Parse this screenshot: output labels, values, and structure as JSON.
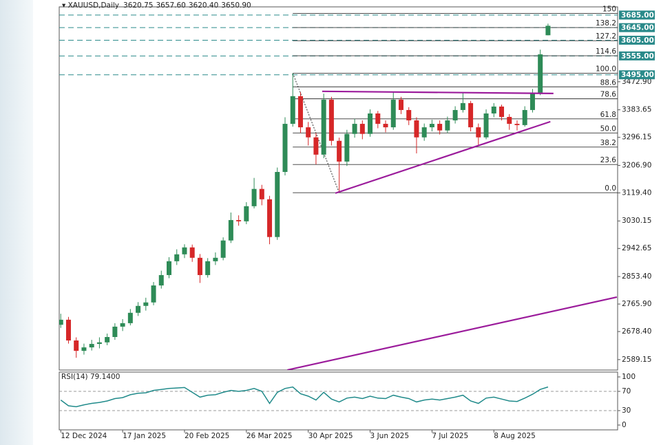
{
  "header": {
    "symbol": "XAUUSD,Daily",
    "ohlc": [
      "3620.75",
      "3657.60",
      "3620.40",
      "3650.90"
    ]
  },
  "chart_data": [
    {
      "type": "candlestick",
      "up_color": "#2e8b57",
      "down_color": "#d62728",
      "open": [
        2700,
        2716,
        2650,
        2617,
        2628,
        2639,
        2644,
        2661,
        2694,
        2705,
        2738,
        2760,
        2771,
        2825,
        2858,
        2902,
        2924,
        2946,
        2913,
        2858,
        2902,
        2913,
        2968,
        3033,
        3029,
        3077,
        3132,
        3099,
        2979,
        3186,
        3339,
        3427,
        3328,
        3296,
        3241,
        3416,
        3285,
        3219,
        3307,
        3339,
        3307,
        3372,
        3339,
        3328,
        3416,
        3383,
        3350,
        3296,
        3328,
        3339,
        3318,
        3350,
        3383,
        3405,
        3328,
        3296,
        3372,
        3394,
        3361,
        3339,
        3335,
        3383,
        3438,
        3620.75
      ],
      "high": [
        2735,
        2725,
        2660,
        2640,
        2652,
        2660,
        2672,
        2705,
        2718,
        2750,
        2772,
        2786,
        2836,
        2872,
        2915,
        2940,
        2956,
        2955,
        2925,
        2912,
        2930,
        2978,
        3057,
        3048,
        3090,
        3167,
        3145,
        3110,
        3200,
        3360,
        3500,
        3440,
        3345,
        3310,
        3435,
        3425,
        3295,
        3320,
        3355,
        3350,
        3385,
        3380,
        3350,
        3440,
        3425,
        3392,
        3360,
        3340,
        3352,
        3350,
        3362,
        3395,
        3438,
        3412,
        3340,
        3385,
        3405,
        3400,
        3370,
        3350,
        3395,
        3450,
        3575,
        3657.6
      ],
      "low": [
        2690,
        2640,
        2595,
        2605,
        2618,
        2625,
        2635,
        2652,
        2680,
        2698,
        2728,
        2745,
        2762,
        2815,
        2848,
        2890,
        2912,
        2900,
        2833,
        2850,
        2890,
        2905,
        2960,
        3015,
        3020,
        3070,
        3080,
        2956,
        2970,
        3175,
        3330,
        3310,
        3270,
        3210,
        3230,
        3270,
        3120,
        3205,
        3295,
        3290,
        3298,
        3325,
        3312,
        3320,
        3370,
        3335,
        3245,
        3285,
        3315,
        3305,
        3310,
        3340,
        3375,
        3315,
        3268,
        3290,
        3360,
        3350,
        3320,
        3318,
        3330,
        3375,
        3430,
        3620.4
      ],
      "close": [
        2716,
        2650,
        2617,
        2628,
        2639,
        2644,
        2661,
        2694,
        2705,
        2738,
        2760,
        2771,
        2825,
        2858,
        2902,
        2924,
        2946,
        2913,
        2858,
        2902,
        2913,
        2968,
        3033,
        3029,
        3077,
        3132,
        3099,
        2979,
        3186,
        3339,
        3427,
        3328,
        3296,
        3241,
        3416,
        3285,
        3219,
        3307,
        3339,
        3307,
        3372,
        3339,
        3328,
        3416,
        3383,
        3350,
        3296,
        3328,
        3339,
        3318,
        3350,
        3383,
        3405,
        3328,
        3296,
        3372,
        3394,
        3361,
        3339,
        3335,
        3383,
        3438,
        3560,
        3650.9
      ],
      "xlim": [
        -0.2,
        72
      ],
      "xticks": [
        {
          "value": 0,
          "label": "12 Dec 2024"
        },
        {
          "value": 8,
          "label": "17 Jan 2025"
        },
        {
          "value": 16,
          "label": "20 Feb 2025"
        },
        {
          "value": 24,
          "label": "26 Mar 2025"
        },
        {
          "value": 32,
          "label": "30 Apr 2025"
        },
        {
          "value": 40,
          "label": "3 Jun 2025"
        },
        {
          "value": 48,
          "label": "7 Jul 2025"
        },
        {
          "value": 56,
          "label": "8 Aug 2025"
        }
      ],
      "ylim": [
        2556,
        3711
      ],
      "yticks": [
        {
          "value": 3472.9,
          "label": "3472.90"
        },
        {
          "value": 3383.65,
          "label": "3383.65"
        },
        {
          "value": 3296.15,
          "label": "3296.15"
        },
        {
          "value": 3206.9,
          "label": "3206.90"
        },
        {
          "value": 3119.4,
          "label": "3119.40"
        },
        {
          "value": 3030.15,
          "label": "3030.15"
        },
        {
          "value": 2942.65,
          "label": "2942.65"
        },
        {
          "value": 2853.4,
          "label": "2853.40"
        },
        {
          "value": 2765.9,
          "label": "2765.90"
        },
        {
          "value": 2678.4,
          "label": "2678.40"
        },
        {
          "value": 2589.15,
          "label": "2589.15"
        }
      ],
      "levels": {
        "values": [
          3685,
          3645,
          3605,
          3555,
          3495
        ],
        "value_labels": [
          "3685.00",
          "3645.00",
          "3605.00",
          "3555.00",
          "3495.00"
        ],
        "color": "#2a8a8a"
      },
      "fibonacci": {
        "levels": [
          "0.0",
          "23.6",
          "38.2",
          "50.0",
          "61.8",
          "78.6",
          "88.6",
          "100.0",
          "114.6",
          "127.2",
          "138.2",
          "150"
        ],
        "prices": [
          3120,
          3209.7,
          3265.2,
          3310,
          3354.8,
          3418.7,
          3456.7,
          3500,
          3555.5,
          3603.4,
          3645.2,
          3690
        ],
        "anchor_x": [
          30,
          36
        ],
        "anchor_y": [
          3500,
          3120
        ],
        "color": "#333333"
      },
      "trendlines": {
        "color": "#9b1b9b",
        "lines": [
          {
            "x": [
              33.8,
              63.7
            ],
            "y": [
              3442.3,
              3435.7
            ]
          },
          {
            "x": [
              35.5,
              63.3
            ],
            "y": [
              3118.5,
              3346
            ]
          },
          {
            "x": [
              29.3,
              71.9
            ],
            "y": [
              2556.2,
              2788
            ]
          }
        ]
      }
    },
    {
      "type": "line",
      "title": "RSI(14) 79.1400",
      "color": "#1f8a8a",
      "values": [
        52,
        40,
        38,
        42,
        45,
        47,
        50,
        55,
        57,
        63,
        66,
        67,
        72,
        74,
        76,
        77,
        78,
        68,
        58,
        62,
        63,
        68,
        72,
        70,
        72,
        76,
        70,
        45,
        68,
        76,
        79,
        65,
        60,
        52,
        68,
        54,
        48,
        56,
        58,
        55,
        60,
        56,
        55,
        62,
        58,
        55,
        48,
        52,
        54,
        52,
        55,
        58,
        62,
        50,
        45,
        56,
        58,
        54,
        50,
        49,
        56,
        64,
        74,
        79.14
      ],
      "ylim": [
        -10,
        110
      ],
      "yticks": [
        100,
        70,
        30,
        0
      ],
      "dashed_levels": [
        70,
        30
      ]
    }
  ]
}
